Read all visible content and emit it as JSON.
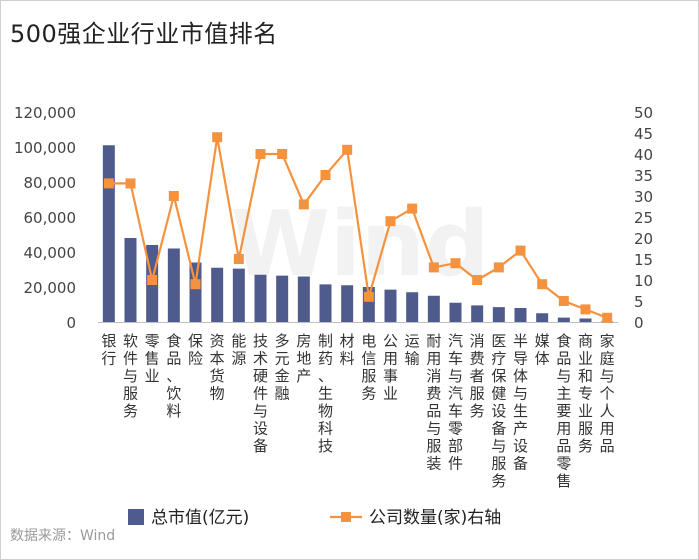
{
  "title": "500强企业行业市值排名",
  "source": "数据来源：Wind",
  "watermark": "Wind",
  "chart_data": {
    "type": "bar+line",
    "categories": [
      "银行",
      "软件与服务",
      "零售业",
      "食品、饮料",
      "保险",
      "资本货物",
      "能源",
      "技术硬件与设备",
      "多元金融",
      "房地产",
      "制药、生物科技",
      "材料",
      "电信服务",
      "公用事业",
      "运输",
      "耐用消费品与服装",
      "汽车与汽车零部件",
      "消费者服务",
      "医疗保健设备与服务",
      "半导体与生产设备",
      "媒体",
      "食品与主要用品零售",
      "商业和专业服务",
      "家庭与个人用品"
    ],
    "series": [
      {
        "name": "总市值(亿元)",
        "type": "bar",
        "axis": "left",
        "color": "#4f5b8c",
        "values": [
          101000,
          48000,
          44000,
          42000,
          34000,
          31000,
          30500,
          27000,
          26500,
          26000,
          21500,
          21000,
          20000,
          18500,
          17000,
          15000,
          11000,
          9500,
          8500,
          8000,
          5000,
          2500,
          2000,
          300
        ]
      },
      {
        "name": "公司数量(家)右轴",
        "type": "line",
        "axis": "right",
        "color": "#f5923e",
        "values": [
          33,
          33,
          10,
          30,
          9,
          44,
          15,
          40,
          40,
          28,
          35,
          41,
          6,
          24,
          27,
          13,
          14,
          10,
          13,
          17,
          9,
          5,
          3,
          1
        ]
      }
    ],
    "ylim_left": [
      0,
      120000
    ],
    "yticks_left": [
      "0",
      "20,000",
      "40,000",
      "60,000",
      "80,000",
      "100,000",
      "120,000"
    ],
    "ylim_right": [
      0,
      50
    ],
    "yticks_right": [
      "0",
      "5",
      "10",
      "15",
      "20",
      "25",
      "30",
      "35",
      "40",
      "45",
      "50"
    ],
    "grid": false,
    "legend_position": "bottom"
  }
}
